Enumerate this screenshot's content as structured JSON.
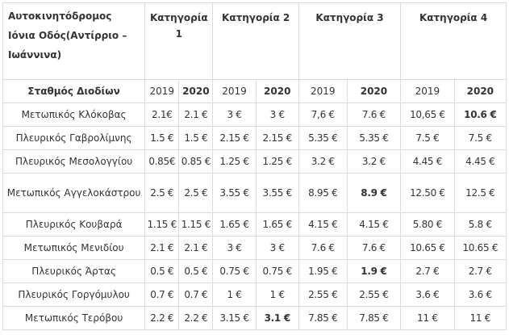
{
  "table": {
    "title": "Αυτοκινητόδρομος Ιόνια Οδός(Αντίρριο – Ιωάννινα)",
    "categories": [
      "Κατηγορία  1",
      "Κατηγορία 2",
      "Κατηγορία 3",
      "Κατηγορία 4"
    ],
    "station_header": "Σταθμός Διοδίων",
    "years": [
      "2019",
      "2020",
      "2019",
      "2020",
      "2019",
      "2020",
      "2019",
      "2020"
    ],
    "rows": [
      {
        "station": "Μετωπικός Κλόκοβας",
        "values": [
          "2.1€",
          "2.1 €",
          "3 €",
          "3 €",
          "7,6 €",
          "7.6 €",
          "10,65 €",
          "10.6 €"
        ]
      },
      {
        "station": "Πλευρικός Γαβρολίμνης",
        "values": [
          "1.5 €",
          "1.5 €",
          "2.15 €",
          "2.15 €",
          "5.35 €",
          "5.35 €",
          "7.5 €",
          "7.5 €"
        ]
      },
      {
        "station": "Πλευρικός Μεσολογγίου",
        "values": [
          "0.85€",
          "0.85 €",
          "1.25 €",
          "1.25 €",
          "3.2 €",
          "3.2 €",
          "4.45 €",
          "4.45 €"
        ]
      },
      {
        "station": "Μετωπικός Αγγελοκάστρου",
        "values": [
          "2.5 €",
          "2.5 €",
          "3.55 €",
          "3.55 €",
          "8.95 €",
          "8.9 €",
          "12.50 €",
          "12.5 €"
        ]
      },
      {
        "station": "Πλευρικός Κουβαρά",
        "values": [
          "1.15 €",
          "1.15 €",
          "1.65 €",
          "1.65 €",
          "4.15 €",
          "4.15 €",
          "5.80 €",
          "5.8 €"
        ]
      },
      {
        "station": "Μετωπικός Μενιδίου",
        "values": [
          "2.1 €",
          "2.1 €",
          "3 €",
          "3 €",
          "7.6 €",
          "7.6 €",
          "10.65 €",
          "10.65 €"
        ]
      },
      {
        "station": "Πλευρικός Άρτας",
        "values": [
          "0.5 €",
          "0.5 €",
          "0.75 €",
          "0.75 €",
          "1.95 €",
          "1.9 €",
          "2.7 €",
          "2.7 €"
        ]
      },
      {
        "station": "Πλευρικός Γοργόμυλου",
        "values": [
          "0.7 €",
          "0.7 €",
          "1 €",
          "1 €",
          "2.55 €",
          "2.55 €",
          "3.6 €",
          "3.6 €"
        ]
      },
      {
        "station": "Μετωπικός Τερόβου",
        "values": [
          "2.2 €",
          "2.2 €",
          "3.15 €",
          "3.1 €",
          "7.85 €",
          "7.85 €",
          "11 €",
          "11 €"
        ]
      }
    ]
  }
}
